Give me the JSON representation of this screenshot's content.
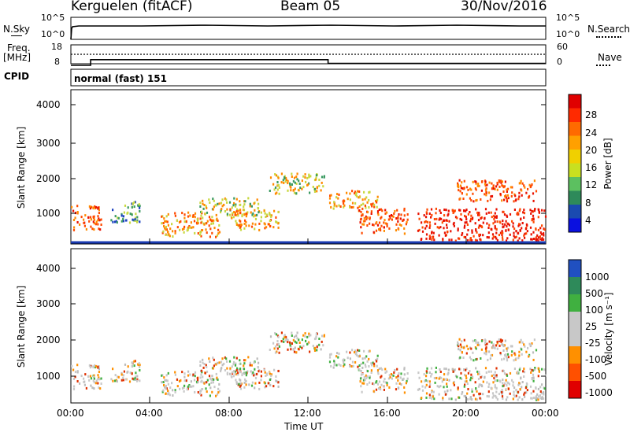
{
  "header": {
    "station": "Kerguelen (fitACF)",
    "beam": "Beam 05",
    "date": "30/Nov/2016"
  },
  "noise_panel": {
    "left_label": "N.Sky",
    "right_label": "N.Search",
    "left_ticks": [
      "10^5",
      "10^0"
    ],
    "right_ticks": [
      "10^5",
      "10^0"
    ]
  },
  "freq_panel": {
    "left_label_line1": "Freq.",
    "left_label_line2": "[MHz]",
    "right_label": "Nave",
    "left_ticks": [
      "18",
      "8"
    ],
    "right_ticks": [
      "60",
      "0"
    ]
  },
  "cpid": {
    "label": "CPID",
    "value": "normal (fast) 151"
  },
  "power_panel": {
    "ylabel": "Slant Range [km]",
    "cbar_label": "Power [dB]",
    "y_ticks": [
      "4000",
      "3000",
      "2000",
      "1000"
    ],
    "cbar_ticks": [
      "28",
      "24",
      "20",
      "16",
      "12",
      "8",
      "4"
    ],
    "cbar_colors": [
      "#e00000",
      "#ff2a00",
      "#ff6a00",
      "#ffa000",
      "#f0d000",
      "#c8e020",
      "#5cc060",
      "#2e8a5a",
      "#1a4ab0",
      "#0a10e0"
    ]
  },
  "velocity_panel": {
    "ylabel": "Slant Range [km]",
    "cbar_label": "Velocity [m s⁻¹]",
    "y_ticks": [
      "4000",
      "3000",
      "2000",
      "1000"
    ],
    "cbar_ticks": [
      "1000",
      "500",
      "100",
      "25",
      "-25",
      "-100",
      "-500",
      "-1000"
    ],
    "cbar_colors": [
      "#2050c0",
      "#2e8a5a",
      "#40b040",
      "#c8c8c8",
      "#c8c8c8",
      "#ff9000",
      "#ff5000",
      "#e00000"
    ]
  },
  "x_axis": {
    "label": "Time UT",
    "ticks": [
      "00:00",
      "04:00",
      "08:00",
      "12:00",
      "16:00",
      "20:00",
      "00:00"
    ]
  },
  "chart_data": {
    "type": "heatmap",
    "title": "Kerguelen (fitACF)",
    "xlabel": "Time UT",
    "ylabel": "Slant Range [km]",
    "x_range_hours": [
      0,
      24
    ],
    "y_range_km": [
      180,
      4500
    ],
    "scatter_regions_power": [
      {
        "t_start": 0.0,
        "t_end": 1.5,
        "r_min": 600,
        "r_max": 1300,
        "level_db": 24
      },
      {
        "t_start": 2.0,
        "t_end": 3.5,
        "r_min": 800,
        "r_max": 1400,
        "level_db": 12
      },
      {
        "t_start": 4.5,
        "t_end": 7.5,
        "r_min": 400,
        "r_max": 1100,
        "level_db": 20
      },
      {
        "t_start": 6.5,
        "t_end": 9.5,
        "r_min": 1000,
        "r_max": 1500,
        "level_db": 16
      },
      {
        "t_start": 8.0,
        "t_end": 10.5,
        "r_min": 600,
        "r_max": 1200,
        "level_db": 20
      },
      {
        "t_start": 10.0,
        "t_end": 12.8,
        "r_min": 1600,
        "r_max": 2200,
        "level_db": 16
      },
      {
        "t_start": 13.0,
        "t_end": 15.5,
        "r_min": 1200,
        "r_max": 1700,
        "level_db": 20
      },
      {
        "t_start": 14.5,
        "t_end": 17.0,
        "r_min": 500,
        "r_max": 1200,
        "level_db": 24
      },
      {
        "t_start": 17.5,
        "t_end": 24.0,
        "r_min": 300,
        "r_max": 1200,
        "level_db": 28
      },
      {
        "t_start": 19.5,
        "t_end": 23.5,
        "r_min": 1400,
        "r_max": 2000,
        "level_db": 24
      }
    ],
    "frequency_mhz": {
      "t": [
        0,
        1,
        1,
        13,
        13,
        24
      ],
      "f": [
        8,
        8,
        11,
        11,
        9,
        9
      ]
    },
    "nave": {
      "t": [
        0,
        24
      ],
      "n": [
        30,
        30
      ]
    }
  }
}
